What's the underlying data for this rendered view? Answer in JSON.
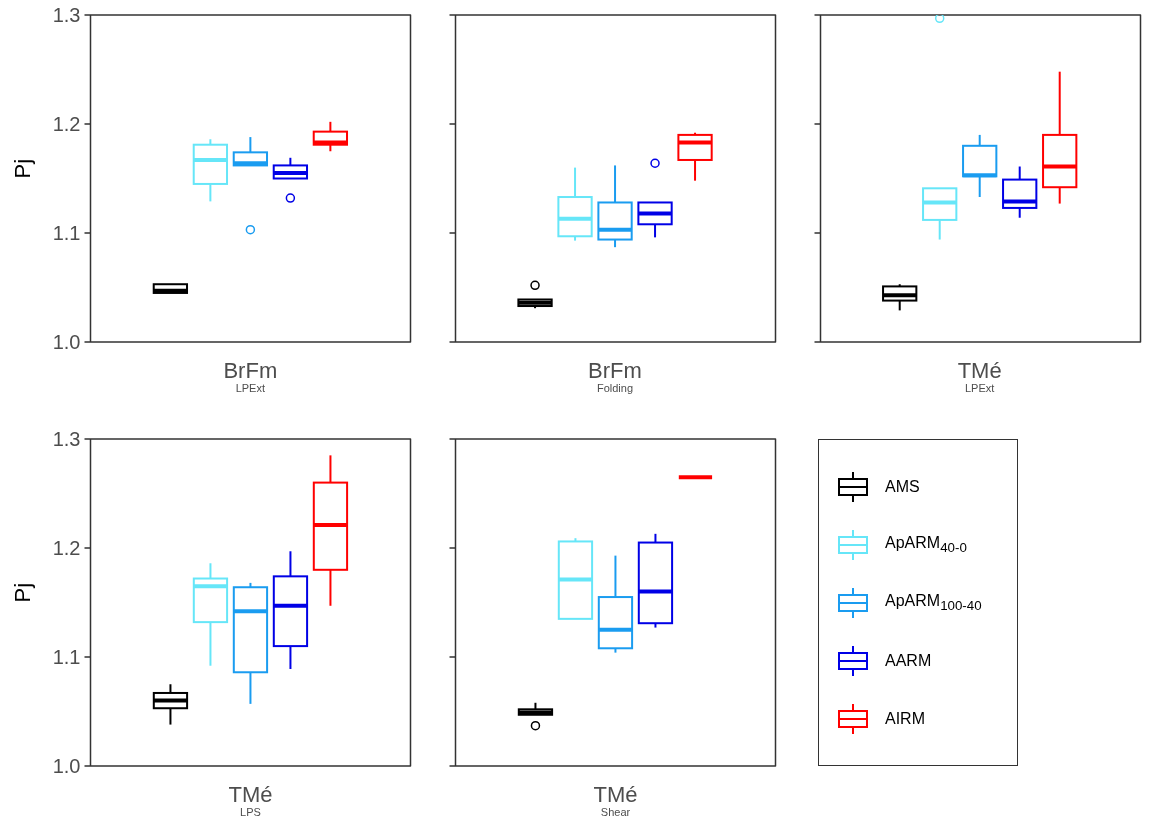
{
  "chart_data": [
    {
      "type": "box",
      "ylabel": "Pj",
      "categories": [
        "BrFm$_{LPExt}$",
        "BrFm$_{Folding}$",
        "TMé$_{LPExt}$"
      ],
      "ylim": [
        1,
        1.3
      ],
      "yticks": [
        {
          "value": 1,
          "label": "1.0"
        },
        {
          "value": 1.1,
          "label": "1.1"
        },
        {
          "value": 1.2,
          "label": "1.2"
        },
        {
          "value": 1.3,
          "label": "1.3"
        }
      ],
      "series": [
        {
          "color": "#000000",
          "boxes": [
            {
              "low": 1.045,
              "q1": 1.045,
              "median": 1.047,
              "q3": 1.053,
              "high": 1.053
            },
            {
              "low": 1.031,
              "q1": 1.033,
              "median": 1.036,
              "q3": 1.039,
              "high": 1.039,
              "outliers": [
                1.052
              ]
            },
            {
              "low": 1.029,
              "q1": 1.038,
              "median": 1.043,
              "q3": 1.051,
              "high": 1.053
            }
          ]
        },
        {
          "color": "#66e6f8",
          "boxes": [
            {
              "low": 1.129,
              "q1": 1.145,
              "median": 1.167,
              "q3": 1.181,
              "high": 1.186
            },
            {
              "low": 1.093,
              "q1": 1.097,
              "median": 1.113,
              "q3": 1.133,
              "high": 1.16
            },
            {
              "low": 1.094,
              "q1": 1.112,
              "median": 1.128,
              "q3": 1.141,
              "high": 1.141,
              "outliers": [
                1.297
              ]
            }
          ]
        },
        {
          "color": "#1a9cf0",
          "boxes": [
            {
              "low": 1.162,
              "q1": 1.162,
              "median": 1.164,
              "q3": 1.174,
              "high": 1.188,
              "outliers": [
                1.103
              ]
            },
            {
              "low": 1.087,
              "q1": 1.094,
              "median": 1.103,
              "q3": 1.128,
              "high": 1.162
            },
            {
              "low": 1.133,
              "q1": 1.152,
              "median": 1.153,
              "q3": 1.18,
              "high": 1.19
            }
          ]
        },
        {
          "color": "#0000e6",
          "boxes": [
            {
              "low": 1.15,
              "q1": 1.15,
              "median": 1.155,
              "q3": 1.162,
              "high": 1.169,
              "outliers": [
                1.132
              ]
            },
            {
              "low": 1.096,
              "q1": 1.108,
              "median": 1.118,
              "q3": 1.128,
              "high": 1.128,
              "outliers": [
                1.164
              ]
            },
            {
              "low": 1.114,
              "q1": 1.123,
              "median": 1.129,
              "q3": 1.149,
              "high": 1.161
            }
          ]
        },
        {
          "color": "#ff0000",
          "boxes": [
            {
              "low": 1.175,
              "q1": 1.181,
              "median": 1.183,
              "q3": 1.193,
              "high": 1.202
            },
            {
              "low": 1.148,
              "q1": 1.167,
              "median": 1.183,
              "q3": 1.19,
              "high": 1.192
            },
            {
              "low": 1.127,
              "q1": 1.142,
              "median": 1.161,
              "q3": 1.19,
              "high": 1.248
            }
          ]
        }
      ]
    },
    {
      "type": "box",
      "ylabel": "Pj",
      "categories": [
        "TMé$_{LPS}$",
        "TMé$_{Shear}$"
      ],
      "ylim": [
        1,
        1.3
      ],
      "yticks": [
        {
          "value": 1,
          "label": "1.0"
        },
        {
          "value": 1.1,
          "label": "1.1"
        },
        {
          "value": 1.2,
          "label": "1.2"
        },
        {
          "value": 1.3,
          "label": "1.3"
        }
      ],
      "legend": "right",
      "series": [
        {
          "name": "AMS",
          "color": "#000000",
          "boxes": [
            {
              "low": 1.038,
              "q1": 1.053,
              "median": 1.06,
              "q3": 1.067,
              "high": 1.075
            },
            {
              "low": 1.047,
              "q1": 1.047,
              "median": 1.049,
              "q3": 1.052,
              "high": 1.058,
              "outliers": [
                1.037
              ]
            }
          ]
        },
        {
          "name": "ApARM$_{40-0}$",
          "color": "#66e6f8",
          "boxes": [
            {
              "low": 1.092,
              "q1": 1.132,
              "median": 1.165,
              "q3": 1.172,
              "high": 1.186
            },
            {
              "low": 1.135,
              "q1": 1.135,
              "median": 1.171,
              "q3": 1.206,
              "high": 1.209
            }
          ]
        },
        {
          "name": "ApARM$_{100-40}$",
          "color": "#1a9cf0",
          "boxes": [
            {
              "low": 1.057,
              "q1": 1.086,
              "median": 1.142,
              "q3": 1.164,
              "high": 1.168
            },
            {
              "low": 1.104,
              "q1": 1.108,
              "median": 1.125,
              "q3": 1.155,
              "high": 1.193
            }
          ]
        },
        {
          "name": "AARM",
          "color": "#0000e6",
          "boxes": [
            {
              "low": 1.089,
              "q1": 1.11,
              "median": 1.147,
              "q3": 1.174,
              "high": 1.197
            },
            {
              "low": 1.127,
              "q1": 1.131,
              "median": 1.16,
              "q3": 1.205,
              "high": 1.213
            }
          ]
        },
        {
          "name": "AIRM",
          "color": "#ff0000",
          "boxes": [
            {
              "low": 1.147,
              "q1": 1.18,
              "median": 1.221,
              "q3": 1.26,
              "high": 1.285
            },
            {
              "low": 1.265,
              "q1": 1.265,
              "median": 1.265,
              "q3": 1.265,
              "high": 1.265
            }
          ]
        }
      ]
    }
  ]
}
